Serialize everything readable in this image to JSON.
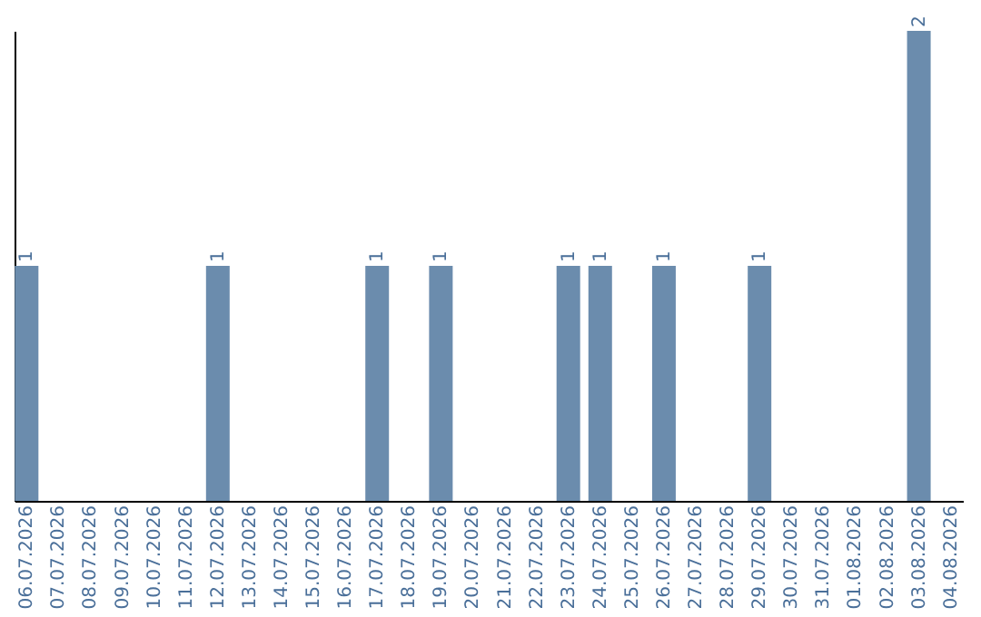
{
  "chart_data": {
    "type": "bar",
    "categories": [
      "06.07.2026",
      "07.07.2026",
      "08.07.2026",
      "09.07.2026",
      "10.07.2026",
      "11.07.2026",
      "12.07.2026",
      "13.07.2026",
      "14.07.2026",
      "15.07.2026",
      "16.07.2026",
      "17.07.2026",
      "18.07.2026",
      "19.07.2026",
      "20.07.2026",
      "21.07.2026",
      "22.07.2026",
      "23.07.2026",
      "24.07.2026",
      "25.07.2026",
      "26.07.2026",
      "27.07.2026",
      "28.07.2026",
      "29.07.2026",
      "30.07.2026",
      "31.07.2026",
      "01.08.2026",
      "02.08.2026",
      "03.08.2026",
      "04.08.2026"
    ],
    "values": [
      1,
      0,
      0,
      0,
      0,
      0,
      1,
      0,
      0,
      0,
      0,
      1,
      0,
      1,
      0,
      0,
      0,
      1,
      1,
      0,
      1,
      0,
      0,
      1,
      0,
      0,
      0,
      0,
      2,
      0
    ],
    "value_labels": [
      "1",
      null,
      null,
      null,
      null,
      null,
      "1",
      null,
      null,
      null,
      null,
      "1",
      null,
      "1",
      null,
      null,
      null,
      "1",
      "1",
      null,
      "1",
      null,
      null,
      "1",
      null,
      null,
      null,
      null,
      "2",
      null
    ],
    "color": "#6b8cad",
    "grid": false,
    "tick_labels": "x"
  }
}
